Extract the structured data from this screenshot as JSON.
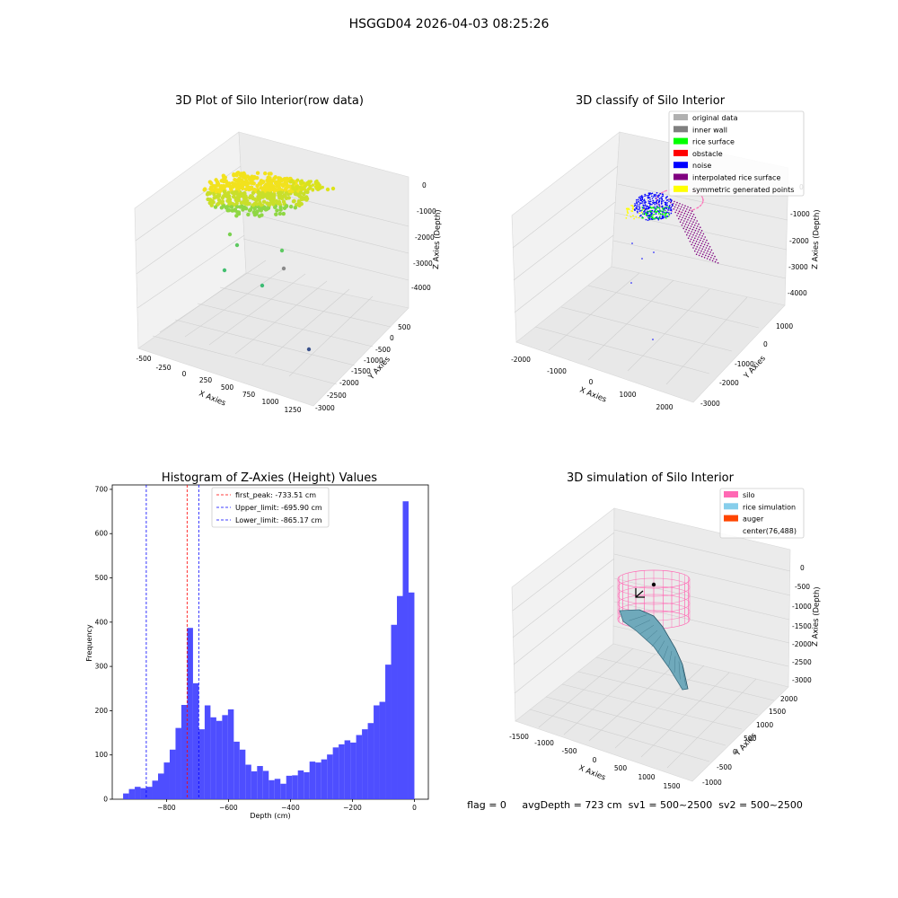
{
  "figure": {
    "suptitle": "HSGGD04 2026-04-03 08:25:26",
    "status_line": "flag = 0     avgDepth = 723 cm  sv1 = 500~2500  sv2 = 500~2500"
  },
  "panels": {
    "raw": {
      "title": "3D Plot of Silo Interior(row data)",
      "xlabel": "X Axies",
      "ylabel": "Y Axies",
      "zlabel": "Z Axies (Depth)",
      "xticks": [
        "-500",
        "-250",
        "0",
        "250",
        "500",
        "750",
        "1000",
        "1250"
      ],
      "yticks": [
        "500",
        "0",
        "-500",
        "-1000",
        "-1500",
        "-2000",
        "-2500",
        "-3000"
      ],
      "zticks": [
        "0",
        "-1000",
        "-2000",
        "-3000",
        "-4000"
      ]
    },
    "classify": {
      "title": "3D classify of Silo Interior",
      "xlabel": "X Axies",
      "ylabel": "Y Axies",
      "zlabel": "Z Axies (Depth)",
      "xticks": [
        "-2000",
        "-1000",
        "0",
        "1000",
        "2000"
      ],
      "yticks": [
        "1000",
        "0",
        "-1000",
        "-2000",
        "-3000"
      ],
      "zticks": [
        "0",
        "-1000",
        "-2000",
        "-3000",
        "-4000"
      ],
      "legend": [
        {
          "label": "original data",
          "color": "#b0b0b0"
        },
        {
          "label": "inner wall",
          "color": "#808080"
        },
        {
          "label": "rice surface",
          "color": "#00ff00"
        },
        {
          "label": "obstacle",
          "color": "#ff0000"
        },
        {
          "label": "noise",
          "color": "#0000ff"
        },
        {
          "label": "interpolated rice surface",
          "color": "#800080"
        },
        {
          "label": "symmetric generated points",
          "color": "#ffff00"
        }
      ]
    },
    "simulation": {
      "title": "3D simulation of Silo Interior",
      "xlabel": "X Axies",
      "ylabel": "Y Axies",
      "zlabel": "Z Axies (Depth)",
      "xticks": [
        "-1500",
        "-1000",
        "-500",
        "0",
        "500",
        "1000",
        "1500"
      ],
      "yticks": [
        "2000",
        "1500",
        "1000",
        "500",
        "0",
        "-500",
        "-1000"
      ],
      "zticks": [
        "0",
        "-500",
        "-1000",
        "-1500",
        "-2000",
        "-2500",
        "-3000"
      ],
      "legend": [
        {
          "label": "silo",
          "color": "#ff69b4"
        },
        {
          "label": "rice simulation",
          "color": "#87ceeb"
        },
        {
          "label": "auger",
          "color": "#ff4500"
        },
        {
          "label": "center(76,488)",
          "color": ""
        }
      ]
    }
  },
  "chart_data": {
    "type": "bar",
    "title": "Histogram of Z-Axies (Height) Values",
    "xlabel": "Depth (cm)",
    "ylabel": "Frequency",
    "xlim": [
      -975,
      45
    ],
    "ylim": [
      0,
      710
    ],
    "xticks": [
      -800,
      -600,
      -400,
      -200,
      0
    ],
    "yticks": [
      0,
      100,
      200,
      300,
      400,
      500,
      600,
      700
    ],
    "bar_color": "#4444ff",
    "bin_start": -940,
    "bin_width": 18.8,
    "values": [
      13,
      23,
      28,
      25,
      28,
      42,
      58,
      83,
      112,
      161,
      213,
      387,
      262,
      158,
      212,
      185,
      177,
      190,
      203,
      130,
      112,
      78,
      63,
      75,
      64,
      43,
      46,
      35,
      53,
      54,
      65,
      61,
      85,
      83,
      90,
      101,
      117,
      124,
      133,
      128,
      145,
      158,
      172,
      212,
      220,
      304,
      394,
      459,
      673,
      467
    ],
    "vlines": [
      {
        "label": "first_peak: -733.51 cm",
        "x": -733.51,
        "color": "#ff0000"
      },
      {
        "label": "Upper_limit: -695.90 cm",
        "x": -695.9,
        "color": "#0000ff"
      },
      {
        "label": "Lower_limit: -865.17 cm",
        "x": -865.17,
        "color": "#0000ff"
      }
    ],
    "legend_position": "top-center",
    "grid": false
  }
}
